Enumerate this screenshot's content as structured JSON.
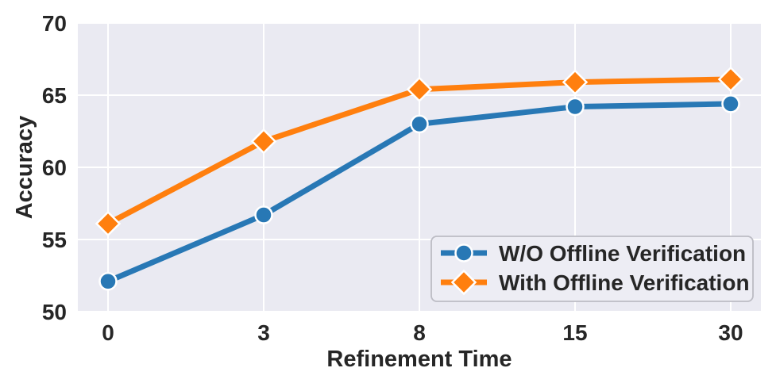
{
  "figure": {
    "background_color": "#ffffff",
    "plot_background_color": "#eaeaf2",
    "grid_color": "#ffffff",
    "text_color": "#262626",
    "legend_background_color": "#ededf4",
    "legend_border_color": "#bcbcc4"
  },
  "chart_data": {
    "type": "line",
    "title": "",
    "xlabel": "Refinement Time",
    "ylabel": "Accuracy",
    "categories": [
      "0",
      "3",
      "8",
      "15",
      "30"
    ],
    "y_ticks": [
      "50",
      "55",
      "60",
      "65",
      "70"
    ],
    "ylim": [
      50,
      70
    ],
    "grid": true,
    "legend_position": "lower right",
    "series": [
      {
        "name": "W/O Offline Verification",
        "marker": "circle",
        "color": "#2878b5",
        "values": [
          52.1,
          56.7,
          63.0,
          64.2,
          64.4
        ]
      },
      {
        "name": "With Offline Verification",
        "marker": "diamond",
        "color": "#ff7f0e",
        "values": [
          56.1,
          61.8,
          65.4,
          65.9,
          66.1
        ]
      }
    ]
  }
}
